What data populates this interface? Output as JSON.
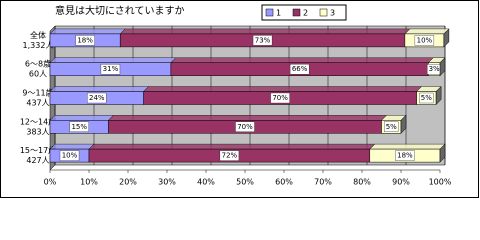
{
  "chart_data": {
    "type": "stacked-bar-horizontal",
    "title": "意見は大切にされていますか",
    "categories": [
      [
        "全体",
        "1,332人"
      ],
      [
        "6～8歳",
        "60人"
      ],
      [
        "9～11歳",
        "437人"
      ],
      [
        "12～14歳",
        "383人"
      ],
      [
        "15～17歳",
        "427人"
      ]
    ],
    "series": [
      {
        "name": "1",
        "color": "#9999ff",
        "values": [
          18,
          31,
          24,
          15,
          10
        ],
        "value_labels": [
          "18%",
          "31%",
          "24%",
          "15%",
          "10%"
        ]
      },
      {
        "name": "2",
        "color": "#993366",
        "values": [
          73,
          66,
          70,
          70,
          72
        ],
        "value_labels": [
          "73%",
          "66%",
          "70%",
          "70%",
          "72%"
        ]
      },
      {
        "name": "3",
        "color": "#ffffcc",
        "values": [
          10,
          3,
          5,
          5,
          18
        ],
        "value_labels": [
          "10%",
          "3%",
          "5%",
          "5%",
          "18%"
        ]
      }
    ],
    "xlim": [
      0,
      100
    ],
    "xticks": [
      {
        "value": 0,
        "label": "0%"
      },
      {
        "value": 10,
        "label": "10%"
      },
      {
        "value": 20,
        "label": "20%"
      },
      {
        "value": 30,
        "label": "30%"
      },
      {
        "value": 40,
        "label": "40%"
      },
      {
        "value": 50,
        "label": "50%"
      },
      {
        "value": 60,
        "label": "60%"
      },
      {
        "value": 70,
        "label": "70%"
      },
      {
        "value": 80,
        "label": "80%"
      },
      {
        "value": 90,
        "label": "90%"
      },
      {
        "value": 100,
        "label": "100%"
      }
    ],
    "grid": true
  }
}
